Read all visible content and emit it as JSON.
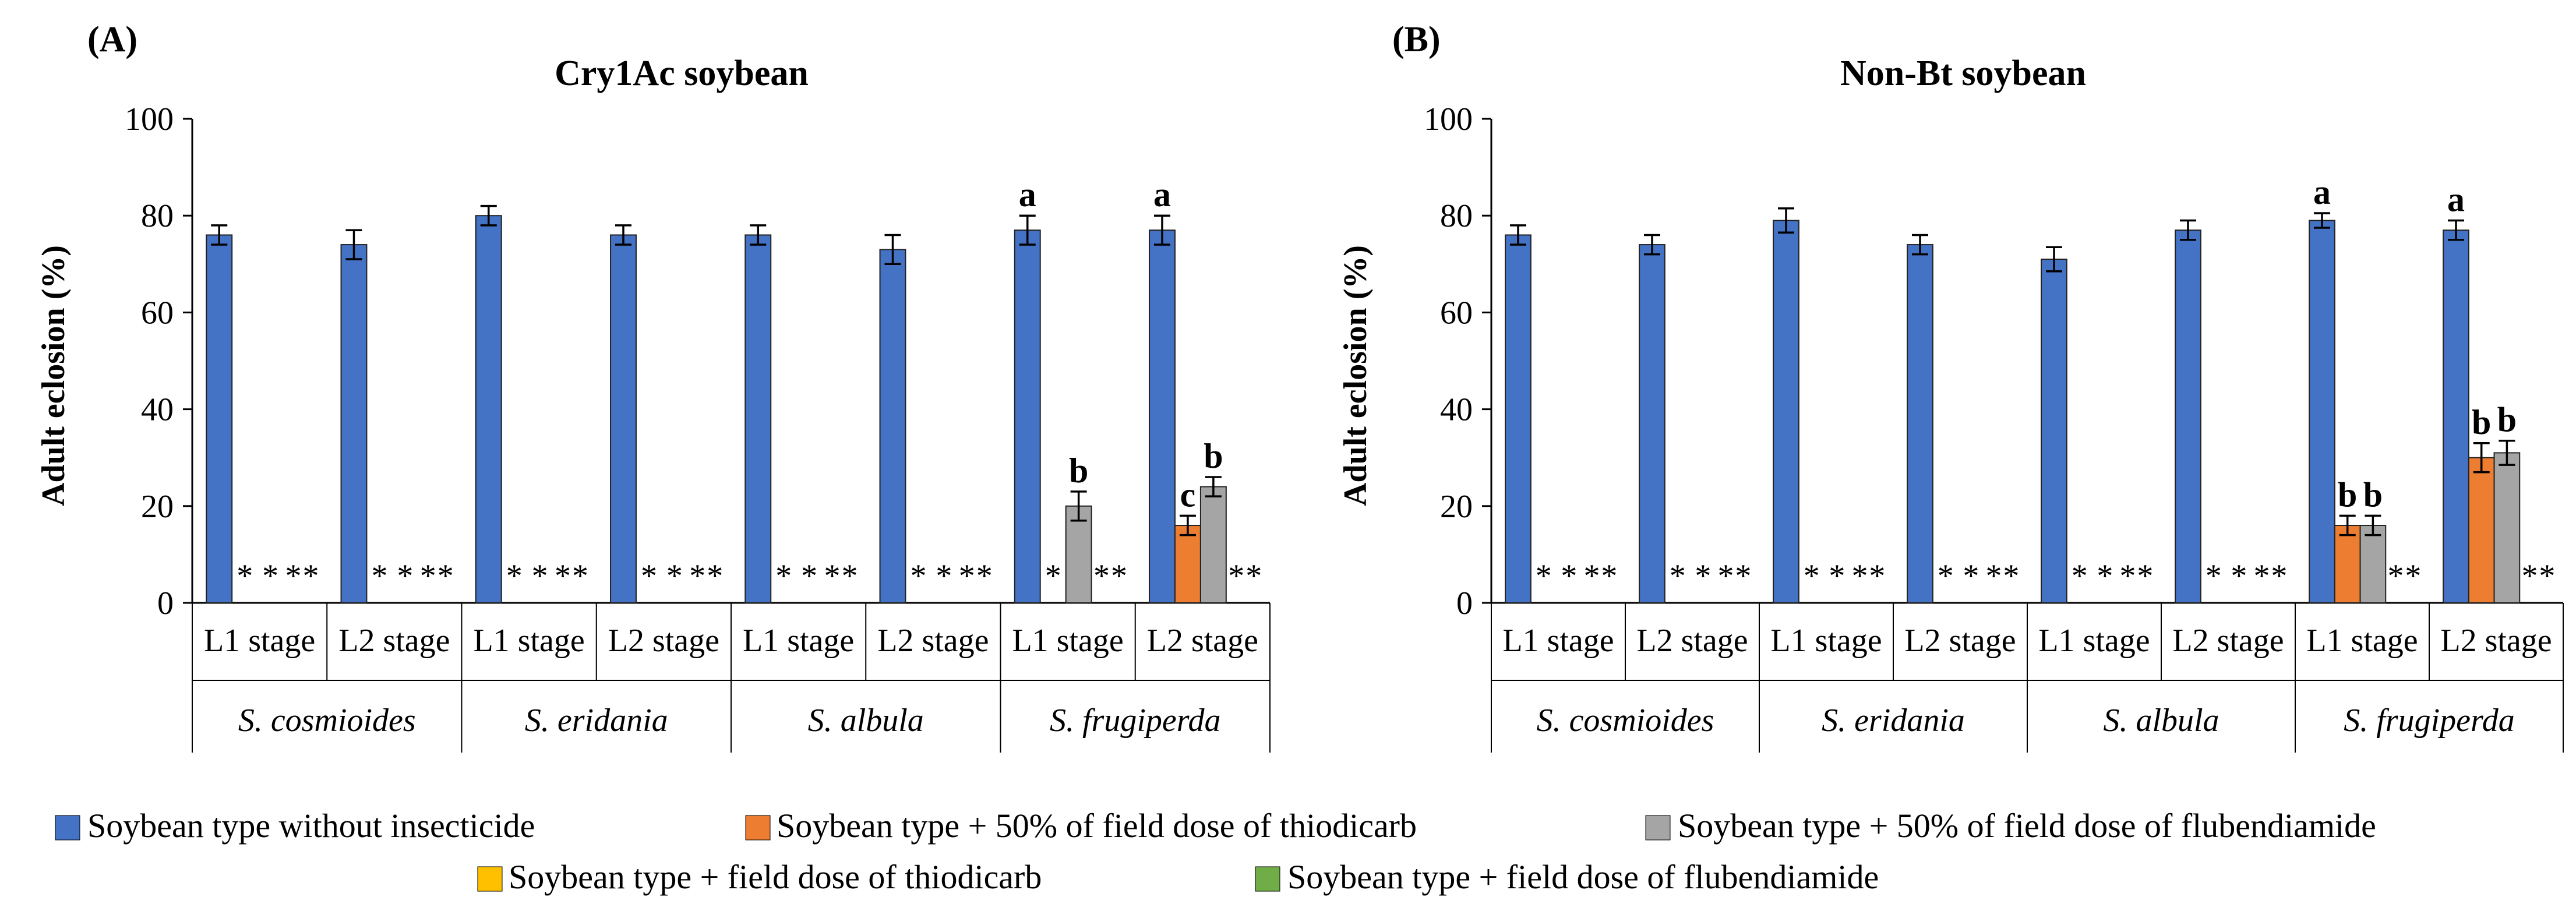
{
  "colors": {
    "none": "#4472C4",
    "thio50": "#ED7D31",
    "flub50": "#A5A5A5",
    "thio": "#FFC000",
    "flub": "#70AD47"
  },
  "series_keys": [
    "none",
    "thio50",
    "flub50",
    "thio",
    "flub"
  ],
  "legend": {
    "none": "Soybean type without insecticide",
    "thio50": "Soybean type + 50% of field dose of thiodicarb",
    "flub50": "Soybean type + 50% of field dose of flubendiamide",
    "thio": "Soybean type + field dose of thiodicarb",
    "flub": "Soybean type + field dose of flubendiamide"
  },
  "chart_data": [
    {
      "type": "bar",
      "panel_label": "(A)",
      "title": "Cry1Ac soybean",
      "ylabel": "Adult eclosion (%)",
      "ylim": [
        0,
        100
      ],
      "yticks": [
        "0",
        "20",
        "40",
        "60",
        "80",
        "100"
      ],
      "species": [
        "S. cosmioides",
        "S. eridania",
        "S. albula",
        "S. frugiperda"
      ],
      "stages": [
        "L1 stage",
        "L2 stage"
      ],
      "groups": [
        {
          "bars": [
            {
              "s": "none",
              "v": 76,
              "e": 2
            },
            {
              "s": "thio50",
              "m": "*"
            },
            {
              "s": "flub50",
              "m": "*"
            },
            {
              "s": "thio",
              "m": "*"
            },
            {
              "s": "flub",
              "m": "*"
            }
          ]
        },
        {
          "bars": [
            {
              "s": "none",
              "v": 74,
              "e": 3
            },
            {
              "s": "thio50",
              "m": "*"
            },
            {
              "s": "flub50",
              "m": "*"
            },
            {
              "s": "thio",
              "m": "*"
            },
            {
              "s": "flub",
              "m": "*"
            }
          ]
        },
        {
          "bars": [
            {
              "s": "none",
              "v": 80,
              "e": 2
            },
            {
              "s": "thio50",
              "m": "*"
            },
            {
              "s": "flub50",
              "m": "*"
            },
            {
              "s": "thio",
              "m": "*"
            },
            {
              "s": "flub",
              "m": "*"
            }
          ]
        },
        {
          "bars": [
            {
              "s": "none",
              "v": 76,
              "e": 2
            },
            {
              "s": "thio50",
              "m": "*"
            },
            {
              "s": "flub50",
              "m": "*"
            },
            {
              "s": "thio",
              "m": "*"
            },
            {
              "s": "flub",
              "m": "*"
            }
          ]
        },
        {
          "bars": [
            {
              "s": "none",
              "v": 76,
              "e": 2
            },
            {
              "s": "thio50",
              "m": "*"
            },
            {
              "s": "flub50",
              "m": "*"
            },
            {
              "s": "thio",
              "m": "*"
            },
            {
              "s": "flub",
              "m": "*"
            }
          ]
        },
        {
          "bars": [
            {
              "s": "none",
              "v": 73,
              "e": 3
            },
            {
              "s": "thio50",
              "m": "*"
            },
            {
              "s": "flub50",
              "m": "*"
            },
            {
              "s": "thio",
              "m": "*"
            },
            {
              "s": "flub",
              "m": "*"
            }
          ]
        },
        {
          "bars": [
            {
              "s": "none",
              "v": 77,
              "e": 3,
              "l": "a"
            },
            {
              "s": "thio50",
              "m": "*"
            },
            {
              "s": "flub50",
              "v": 20,
              "e": 3,
              "l": "b"
            },
            {
              "s": "thio",
              "m": "*"
            },
            {
              "s": "flub",
              "m": "*"
            }
          ]
        },
        {
          "bars": [
            {
              "s": "none",
              "v": 77,
              "e": 3,
              "l": "a"
            },
            {
              "s": "thio50",
              "v": 16,
              "e": 2,
              "l": "c"
            },
            {
              "s": "flub50",
              "v": 24,
              "e": 2,
              "l": "b"
            },
            {
              "s": "thio",
              "m": "*"
            },
            {
              "s": "flub",
              "m": "*"
            }
          ]
        }
      ]
    },
    {
      "type": "bar",
      "panel_label": "(B)",
      "title": "Non-Bt soybean",
      "ylabel": "Adult eclosion (%)",
      "ylim": [
        0,
        100
      ],
      "yticks": [
        "0",
        "20",
        "40",
        "60",
        "80",
        "100"
      ],
      "species": [
        "S. cosmioides",
        "S. eridania",
        "S. albula",
        "S. frugiperda"
      ],
      "stages": [
        "L1 stage",
        "L2 stage"
      ],
      "groups": [
        {
          "bars": [
            {
              "s": "none",
              "v": 76,
              "e": 2
            },
            {
              "s": "thio50",
              "m": "*"
            },
            {
              "s": "flub50",
              "m": "*"
            },
            {
              "s": "thio",
              "m": "*"
            },
            {
              "s": "flub",
              "m": "*"
            }
          ]
        },
        {
          "bars": [
            {
              "s": "none",
              "v": 74,
              "e": 2
            },
            {
              "s": "thio50",
              "m": "*"
            },
            {
              "s": "flub50",
              "m": "*"
            },
            {
              "s": "thio",
              "m": "*"
            },
            {
              "s": "flub",
              "m": "*"
            }
          ]
        },
        {
          "bars": [
            {
              "s": "none",
              "v": 79,
              "e": 2.5
            },
            {
              "s": "thio50",
              "m": "*"
            },
            {
              "s": "flub50",
              "m": "*"
            },
            {
              "s": "thio",
              "m": "*"
            },
            {
              "s": "flub",
              "m": "*"
            }
          ]
        },
        {
          "bars": [
            {
              "s": "none",
              "v": 74,
              "e": 2
            },
            {
              "s": "thio50",
              "m": "*"
            },
            {
              "s": "flub50",
              "m": "*"
            },
            {
              "s": "thio",
              "m": "*"
            },
            {
              "s": "flub",
              "m": "*"
            }
          ]
        },
        {
          "bars": [
            {
              "s": "none",
              "v": 71,
              "e": 2.5
            },
            {
              "s": "thio50",
              "m": "*"
            },
            {
              "s": "flub50",
              "m": "*"
            },
            {
              "s": "thio",
              "m": "*"
            },
            {
              "s": "flub",
              "m": "*"
            }
          ]
        },
        {
          "bars": [
            {
              "s": "none",
              "v": 77,
              "e": 2
            },
            {
              "s": "thio50",
              "m": "*"
            },
            {
              "s": "flub50",
              "m": "*"
            },
            {
              "s": "thio",
              "m": "*"
            },
            {
              "s": "flub",
              "m": "*"
            }
          ]
        },
        {
          "bars": [
            {
              "s": "none",
              "v": 79,
              "e": 1.5,
              "l": "a"
            },
            {
              "s": "thio50",
              "v": 16,
              "e": 2,
              "l": "b"
            },
            {
              "s": "flub50",
              "v": 16,
              "e": 2,
              "l": "b"
            },
            {
              "s": "thio",
              "m": "*"
            },
            {
              "s": "flub",
              "m": "*"
            }
          ]
        },
        {
          "bars": [
            {
              "s": "none",
              "v": 77,
              "e": 2,
              "l": "a"
            },
            {
              "s": "thio50",
              "v": 30,
              "e": 3,
              "l": "b"
            },
            {
              "s": "flub50",
              "v": 31,
              "e": 2.5,
              "l": "b"
            },
            {
              "s": "thio",
              "m": "*"
            },
            {
              "s": "flub",
              "m": "*"
            }
          ]
        }
      ]
    }
  ]
}
